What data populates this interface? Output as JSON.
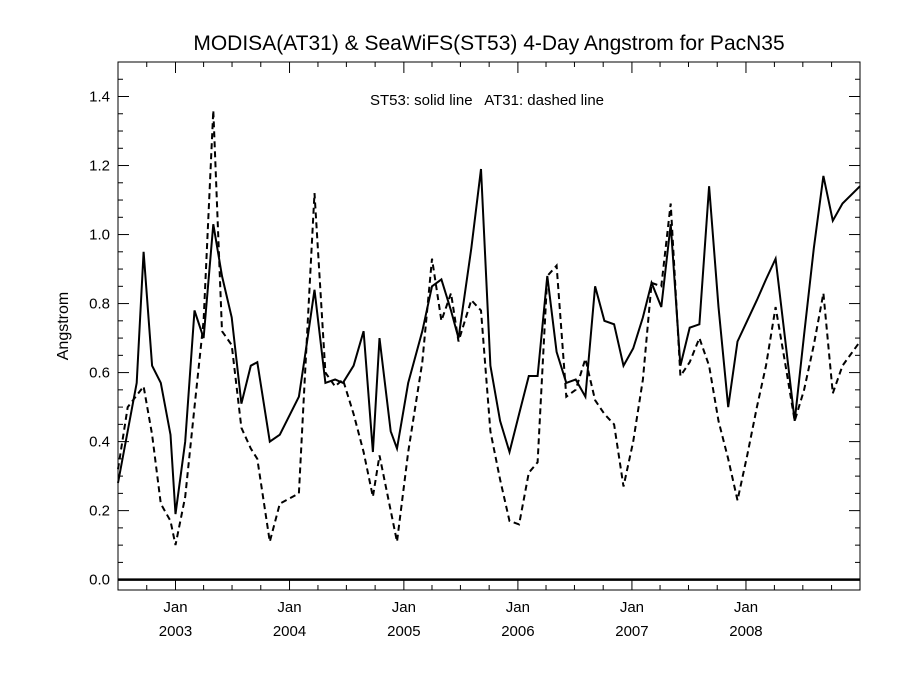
{
  "chart_data": {
    "type": "line",
    "title": "MODISA(AT31) & SeaWiFS(ST53) 4-Day Angstrom for PacN35",
    "xlabel": "",
    "ylabel": "Angstrom",
    "annotation": "ST53: solid line   AT31: dashed line",
    "xlim": [
      "2002-07-01",
      "2008-12-31"
    ],
    "ylim": [
      -0.03,
      1.5
    ],
    "y_ticks": [
      "0.0",
      "0.2",
      "0.4",
      "0.6",
      "0.8",
      "1.0",
      "1.2",
      "1.4"
    ],
    "x_ticks": [
      {
        "date": "2003-01-01",
        "month": "Jan",
        "year": "2003"
      },
      {
        "date": "2004-01-01",
        "month": "Jan",
        "year": "2004"
      },
      {
        "date": "2005-01-01",
        "month": "Jan",
        "year": "2005"
      },
      {
        "date": "2006-01-01",
        "month": "Jan",
        "year": "2006"
      },
      {
        "date": "2007-01-01",
        "month": "Jan",
        "year": "2007"
      },
      {
        "date": "2008-01-01",
        "month": "Jan",
        "year": "2008"
      }
    ],
    "zero_line": 0.0,
    "grid": false,
    "series": [
      {
        "style": "solid",
        "points": [
          [
            "2002-07-01",
            0.28
          ],
          [
            "2002-08-30",
            0.57
          ],
          [
            "2002-09-21",
            0.95
          ],
          [
            "2002-10-18",
            0.62
          ],
          [
            "2002-11-15",
            0.57
          ],
          [
            "2002-12-16",
            0.42
          ],
          [
            "2003-01-01",
            0.19
          ],
          [
            "2003-02-01",
            0.4
          ],
          [
            "2003-03-03",
            0.78
          ],
          [
            "2003-04-01",
            0.7
          ],
          [
            "2003-05-02",
            1.03
          ],
          [
            "2003-05-30",
            0.88
          ],
          [
            "2003-06-30",
            0.76
          ],
          [
            "2003-07-31",
            0.51
          ],
          [
            "2003-08-30",
            0.62
          ],
          [
            "2003-09-20",
            0.63
          ],
          [
            "2003-10-30",
            0.4
          ],
          [
            "2003-12-01",
            0.42
          ],
          [
            "2004-01-31",
            0.53
          ],
          [
            "2004-02-20",
            0.65
          ],
          [
            "2004-03-21",
            0.84
          ],
          [
            "2004-04-25",
            0.57
          ],
          [
            "2004-05-26",
            0.58
          ],
          [
            "2004-06-20",
            0.57
          ],
          [
            "2004-07-24",
            0.62
          ],
          [
            "2004-08-25",
            0.72
          ],
          [
            "2004-09-24",
            0.37
          ],
          [
            "2004-10-15",
            0.7
          ],
          [
            "2004-11-20",
            0.43
          ],
          [
            "2004-12-10",
            0.38
          ],
          [
            "2005-01-15",
            0.57
          ],
          [
            "2005-03-01",
            0.72
          ],
          [
            "2005-04-01",
            0.85
          ],
          [
            "2005-05-01",
            0.87
          ],
          [
            "2005-06-01",
            0.78
          ],
          [
            "2005-06-25",
            0.7
          ],
          [
            "2005-08-05",
            0.96
          ],
          [
            "2005-09-05",
            1.19
          ],
          [
            "2005-10-05",
            0.62
          ],
          [
            "2005-11-05",
            0.46
          ],
          [
            "2005-12-05",
            0.37
          ],
          [
            "2006-01-05",
            0.48
          ],
          [
            "2006-02-05",
            0.59
          ],
          [
            "2006-03-05",
            0.59
          ],
          [
            "2006-04-05",
            0.88
          ],
          [
            "2006-05-05",
            0.66
          ],
          [
            "2006-06-05",
            0.57
          ],
          [
            "2006-07-05",
            0.58
          ],
          [
            "2006-08-05",
            0.53
          ],
          [
            "2006-09-05",
            0.85
          ],
          [
            "2006-10-05",
            0.75
          ],
          [
            "2006-11-05",
            0.74
          ],
          [
            "2006-12-05",
            0.62
          ],
          [
            "2007-01-05",
            0.67
          ],
          [
            "2007-02-05",
            0.76
          ],
          [
            "2007-03-05",
            0.86
          ],
          [
            "2007-04-05",
            0.79
          ],
          [
            "2007-05-05",
            1.03
          ],
          [
            "2007-06-05",
            0.62
          ],
          [
            "2007-07-05",
            0.73
          ],
          [
            "2007-08-05",
            0.74
          ],
          [
            "2007-09-05",
            1.14
          ],
          [
            "2007-10-05",
            0.79
          ],
          [
            "2007-11-05",
            0.5
          ],
          [
            "2007-12-05",
            0.69
          ],
          [
            "2008-01-05",
            0.75
          ],
          [
            "2008-02-05",
            0.81
          ],
          [
            "2008-03-05",
            0.87
          ],
          [
            "2008-04-05",
            0.93
          ],
          [
            "2008-05-05",
            0.7
          ],
          [
            "2008-06-05",
            0.46
          ],
          [
            "2008-07-05",
            0.71
          ],
          [
            "2008-08-05",
            0.96
          ],
          [
            "2008-09-05",
            1.17
          ],
          [
            "2008-10-05",
            1.04
          ],
          [
            "2008-11-05",
            1.09
          ],
          [
            "2008-12-31",
            1.14
          ]
        ]
      },
      {
        "style": "dashed",
        "points": [
          [
            "2002-07-01",
            0.32
          ],
          [
            "2002-08-01",
            0.5
          ],
          [
            "2002-09-21",
            0.56
          ],
          [
            "2002-10-18",
            0.42
          ],
          [
            "2002-11-15",
            0.22
          ],
          [
            "2002-12-16",
            0.17
          ],
          [
            "2003-01-01",
            0.1
          ],
          [
            "2003-02-01",
            0.24
          ],
          [
            "2003-03-03",
            0.5
          ],
          [
            "2003-04-01",
            0.75
          ],
          [
            "2003-05-02",
            1.36
          ],
          [
            "2003-05-30",
            0.72
          ],
          [
            "2003-06-30",
            0.68
          ],
          [
            "2003-07-31",
            0.44
          ],
          [
            "2003-08-30",
            0.38
          ],
          [
            "2003-09-20",
            0.35
          ],
          [
            "2003-10-30",
            0.11
          ],
          [
            "2003-12-01",
            0.22
          ],
          [
            "2004-01-31",
            0.25
          ],
          [
            "2004-02-20",
            0.6
          ],
          [
            "2004-03-21",
            1.12
          ],
          [
            "2004-04-25",
            0.6
          ],
          [
            "2004-05-26",
            0.56
          ],
          [
            "2004-06-20",
            0.58
          ],
          [
            "2004-07-24",
            0.48
          ],
          [
            "2004-08-25",
            0.37
          ],
          [
            "2004-09-24",
            0.24
          ],
          [
            "2004-10-15",
            0.36
          ],
          [
            "2004-11-20",
            0.2
          ],
          [
            "2004-12-10",
            0.11
          ],
          [
            "2005-01-15",
            0.37
          ],
          [
            "2005-03-01",
            0.63
          ],
          [
            "2005-04-01",
            0.93
          ],
          [
            "2005-05-01",
            0.75
          ],
          [
            "2005-06-01",
            0.83
          ],
          [
            "2005-06-25",
            0.69
          ],
          [
            "2005-08-05",
            0.81
          ],
          [
            "2005-09-05",
            0.78
          ],
          [
            "2005-10-05",
            0.43
          ],
          [
            "2005-11-05",
            0.29
          ],
          [
            "2005-12-05",
            0.17
          ],
          [
            "2006-01-05",
            0.16
          ],
          [
            "2006-02-05",
            0.31
          ],
          [
            "2006-03-05",
            0.34
          ],
          [
            "2006-04-05",
            0.88
          ],
          [
            "2006-05-05",
            0.91
          ],
          [
            "2006-06-05",
            0.53
          ],
          [
            "2006-07-05",
            0.55
          ],
          [
            "2006-08-05",
            0.64
          ],
          [
            "2006-09-05",
            0.52
          ],
          [
            "2006-10-05",
            0.48
          ],
          [
            "2006-11-05",
            0.45
          ],
          [
            "2006-12-05",
            0.27
          ],
          [
            "2007-01-05",
            0.4
          ],
          [
            "2007-02-05",
            0.58
          ],
          [
            "2007-03-05",
            0.86
          ],
          [
            "2007-04-05",
            0.85
          ],
          [
            "2007-05-05",
            1.09
          ],
          [
            "2007-06-05",
            0.59
          ],
          [
            "2007-07-05",
            0.63
          ],
          [
            "2007-08-05",
            0.7
          ],
          [
            "2007-09-05",
            0.62
          ],
          [
            "2007-10-05",
            0.46
          ],
          [
            "2007-11-05",
            0.35
          ],
          [
            "2007-12-05",
            0.23
          ],
          [
            "2008-01-05",
            0.36
          ],
          [
            "2008-02-05",
            0.5
          ],
          [
            "2008-03-05",
            0.62
          ],
          [
            "2008-04-05",
            0.79
          ],
          [
            "2008-05-05",
            0.63
          ],
          [
            "2008-06-05",
            0.46
          ],
          [
            "2008-07-05",
            0.55
          ],
          [
            "2008-08-05",
            0.68
          ],
          [
            "2008-09-05",
            0.83
          ],
          [
            "2008-10-05",
            0.54
          ],
          [
            "2008-11-05",
            0.62
          ],
          [
            "2008-12-31",
            0.69
          ]
        ]
      }
    ]
  }
}
